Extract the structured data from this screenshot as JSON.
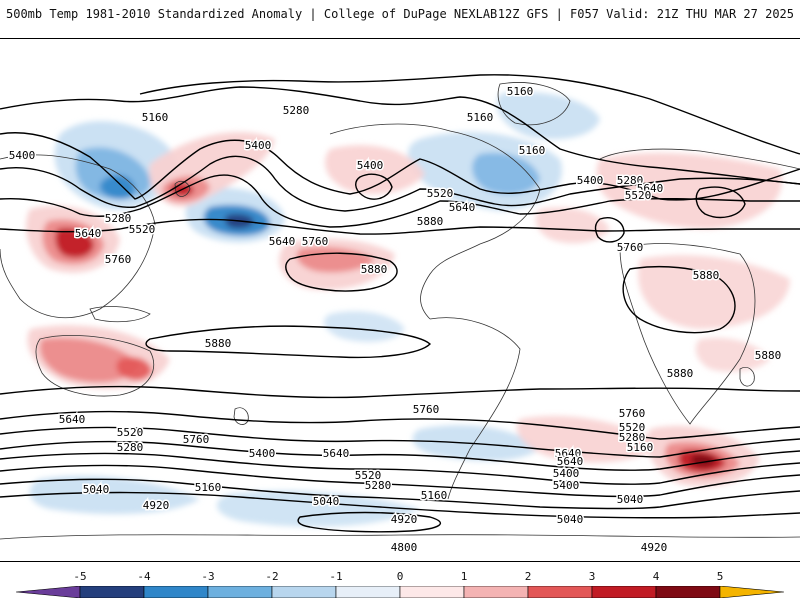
{
  "header": {
    "title": "500mb Temp 1981-2010 Standardized Anomaly | College of DuPage NEXLAB",
    "run_info": "12Z GFS | F057 Valid: 21Z THU MAR 27 2025"
  },
  "colorbar": {
    "ticks": [
      "-5",
      "-4",
      "-3",
      "-2",
      "-1",
      "0",
      "1",
      "2",
      "3",
      "4",
      "5"
    ],
    "colors": [
      "#6a3d9a",
      "#243f7d",
      "#2f86c9",
      "#6db0df",
      "#b8d6ee",
      "#e7eff8",
      "#fde8e8",
      "#f4b3b3",
      "#e35757",
      "#c11b24",
      "#7f0a14",
      "#f4b400"
    ]
  },
  "map": {
    "contour_labels": [
      "5160",
      "5280",
      "5160",
      "5400",
      "5280",
      "5640",
      "5520",
      "5760",
      "5400",
      "5640",
      "5520",
      "5640",
      "5760",
      "5880",
      "5160",
      "5160",
      "5400",
      "5280",
      "5640",
      "5520",
      "5400",
      "5760",
      "5880",
      "5880",
      "5880",
      "5880",
      "5880",
      "5640",
      "5520",
      "5280",
      "5760",
      "5400",
      "5640",
      "5520",
      "5040",
      "5160",
      "5280",
      "5040",
      "4920",
      "4920",
      "4800",
      "5760",
      "5760",
      "5640",
      "5520",
      "5280",
      "5160",
      "5400",
      "5040",
      "5040",
      "4920",
      "5160",
      "5400",
      "5640"
    ],
    "colors": {
      "warm_weak": "#f8d2d2",
      "warm_mod": "#ec8c8c",
      "warm_strong": "#c11b24",
      "warm_extreme": "#7f0a14",
      "cold_weak": "#c8dff2",
      "cold_mod": "#7fb6e3",
      "cold_strong": "#2f86c9",
      "cold_extreme": "#243f7d",
      "land_outline": "#333333",
      "contour": "#000000"
    }
  }
}
